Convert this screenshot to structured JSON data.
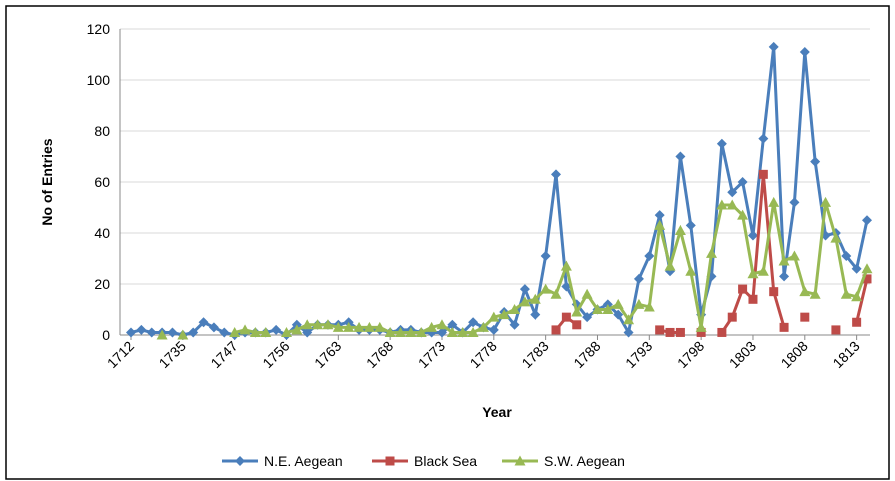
{
  "chart_data": {
    "type": "line",
    "xlabel": "Year",
    "ylabel": "No of Entries",
    "categories": [
      "1712",
      null,
      null,
      null,
      null,
      "1735",
      null,
      null,
      null,
      null,
      "1747",
      null,
      null,
      null,
      null,
      "1756",
      null,
      null,
      null,
      null,
      "1763",
      null,
      null,
      null,
      null,
      "1768",
      null,
      null,
      null,
      null,
      "1773",
      null,
      null,
      null,
      null,
      "1778",
      null,
      null,
      null,
      null,
      "1783",
      null,
      null,
      null,
      null,
      "1788",
      null,
      null,
      null,
      null,
      "1793",
      null,
      null,
      null,
      null,
      "1798",
      null,
      null,
      null,
      null,
      "1803",
      null,
      null,
      null,
      null,
      "1808",
      null,
      null,
      null,
      null,
      "1813",
      null
    ],
    "series": [
      {
        "name": "N.E. Aegean",
        "color": "#4a7ebb",
        "marker": "diamond",
        "values": [
          1,
          2,
          1,
          1,
          1,
          0,
          1,
          5,
          3,
          1,
          0,
          1,
          1,
          1,
          2,
          0,
          4,
          1,
          4,
          4,
          4,
          5,
          2,
          2,
          2,
          1,
          2,
          2,
          1,
          1,
          1,
          4,
          1,
          5,
          3,
          2,
          9,
          4,
          18,
          8,
          31,
          63,
          19,
          12,
          7,
          10,
          12,
          8,
          1,
          22,
          31,
          47,
          25,
          70,
          43,
          8,
          23,
          75,
          56,
          60,
          39,
          77,
          113,
          23,
          52,
          111,
          68,
          39,
          40,
          31,
          26,
          45
        ]
      },
      {
        "name": "Black Sea",
        "color": "#be4b48",
        "marker": "square",
        "values": [
          null,
          null,
          null,
          null,
          null,
          null,
          null,
          null,
          null,
          null,
          null,
          null,
          null,
          null,
          null,
          null,
          null,
          null,
          null,
          null,
          null,
          null,
          null,
          null,
          null,
          null,
          null,
          null,
          null,
          null,
          null,
          null,
          null,
          null,
          null,
          null,
          null,
          null,
          null,
          null,
          null,
          2,
          7,
          4,
          null,
          null,
          null,
          null,
          null,
          null,
          null,
          2,
          1,
          1,
          null,
          1,
          null,
          1,
          7,
          18,
          14,
          63,
          17,
          3,
          null,
          7,
          null,
          null,
          2,
          null,
          5,
          22
        ]
      },
      {
        "name": "S.W. Aegean",
        "color": "#98b954",
        "marker": "triangle",
        "values": [
          null,
          null,
          null,
          0,
          null,
          0,
          null,
          null,
          null,
          null,
          1,
          2,
          1,
          1,
          null,
          1,
          2,
          4,
          4,
          4,
          3,
          3,
          3,
          3,
          3,
          1,
          1,
          1,
          1,
          3,
          4,
          1,
          1,
          1,
          3,
          7,
          8,
          10,
          13,
          14,
          18,
          16,
          27,
          9,
          16,
          10,
          10,
          12,
          6,
          12,
          11,
          43,
          27,
          41,
          25,
          3,
          32,
          51,
          51,
          47,
          24,
          25,
          52,
          29,
          31,
          17,
          16,
          52,
          38,
          16,
          15,
          26
        ]
      }
    ],
    "ylim": [
      0,
      120
    ],
    "yticks": [
      0,
      20,
      40,
      60,
      80,
      100,
      120
    ],
    "grid": true,
    "legend": "bottom"
  }
}
